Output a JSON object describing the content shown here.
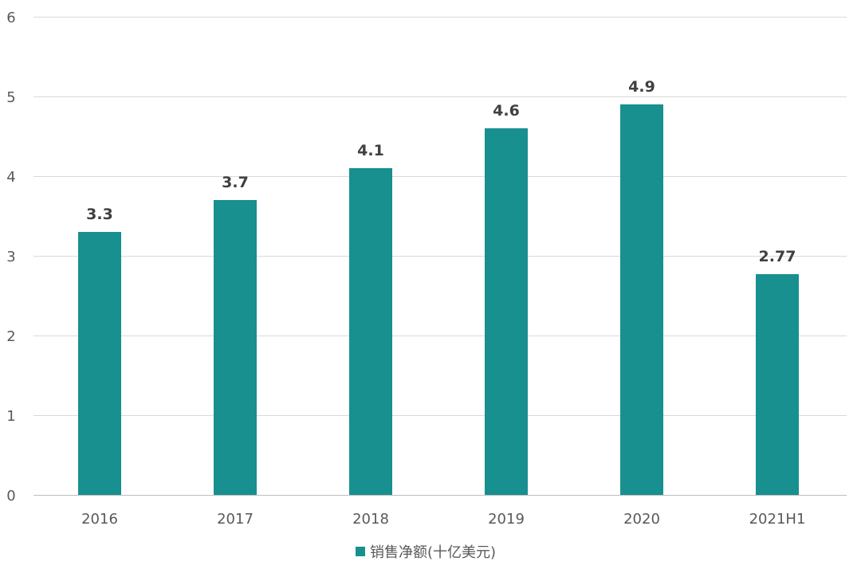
{
  "chart_data": {
    "type": "bar",
    "categories": [
      "2016",
      "2017",
      "2018",
      "2019",
      "2020",
      "2021H1"
    ],
    "series": [
      {
        "name": "销售净额(十亿美元)",
        "values": [
          3.3,
          3.7,
          4.1,
          4.6,
          4.9,
          2.77
        ],
        "color": "#17908F"
      }
    ],
    "data_labels": [
      "3.3",
      "3.7",
      "4.1",
      "4.6",
      "4.9",
      "2.77"
    ],
    "yticks": [
      "0",
      "1",
      "2",
      "3",
      "4",
      "5",
      "6"
    ],
    "ylim": [
      0,
      6
    ],
    "grid": true,
    "legend_position": "bottom",
    "title": "",
    "xlabel": "",
    "ylabel": ""
  }
}
